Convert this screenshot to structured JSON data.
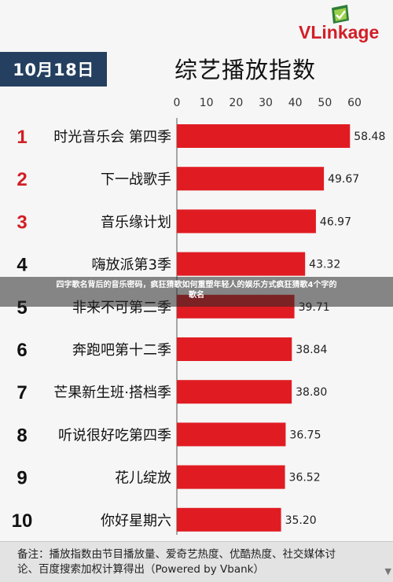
{
  "header": {
    "date": "10月18日",
    "title": "综艺播放指数"
  },
  "logo": {
    "text": "VLinkage",
    "icon": "vlinkage-mark-icon",
    "color": "#d21e26"
  },
  "banner": {
    "line1": "四字歌名背后的音乐密码，疯狂猜歌如何重塑年轻人的娱乐方式疯狂猜歌4个字的",
    "line2": "歌名"
  },
  "chart_data": {
    "type": "bar",
    "orientation": "horizontal",
    "title": "综艺播放指数",
    "xlim": [
      0,
      60
    ],
    "xticks": [
      0,
      10,
      20,
      30,
      40,
      50,
      60
    ],
    "xaxis_position": "top",
    "bar_color": "#e01c22",
    "rank_color_top3": "#d11f25",
    "rank_color_rest": "#111111",
    "ranks": [
      "1",
      "2",
      "3",
      "4",
      "5",
      "6",
      "7",
      "8",
      "9",
      "10"
    ],
    "categories": [
      "时光音乐会 第四季",
      "下一战歌手",
      "音乐缘计划",
      "嗨放派第3季",
      "非来不可第二季",
      "奔跑吧第十二季",
      "芒果新生班·搭档季",
      "听说很好吃第四季",
      "花儿绽放",
      "你好星期六"
    ],
    "values": [
      58.48,
      49.67,
      46.97,
      43.32,
      39.71,
      38.84,
      38.8,
      36.75,
      36.52,
      35.2
    ],
    "value_labels": [
      "58.48",
      "49.67",
      "46.97",
      "43.32",
      "39.71",
      "38.84",
      "38.80",
      "36.75",
      "36.52",
      "35.20"
    ]
  },
  "footer": {
    "line1": "备注：播放指数由节目播放量、爱奇艺热度、优酷热度、社交媒体讨",
    "line2": "论、百度搜索加权计算得出（Powered by Vbank）"
  },
  "scroll_icon": "scroll-down-arrow-icon"
}
